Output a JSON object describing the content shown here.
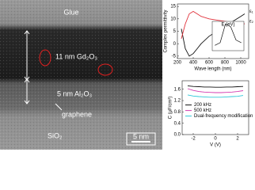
{
  "image": {
    "labels": [
      "Glue",
      "11 nm Gd₂O₃",
      "5 nm Al₂O₃",
      "graphene",
      "SiO₂"
    ],
    "scale_bar": "5 nm"
  },
  "chart_data": [
    {
      "type": "line",
      "xlabel": "Wave length (nm)",
      "ylabel": "Complex permittivity",
      "x": [
        250,
        300,
        350,
        400,
        450,
        500,
        600,
        700,
        800,
        900,
        1000,
        1050
      ],
      "xlim": [
        200,
        1100
      ],
      "xticks": [
        200,
        400,
        600,
        800,
        1000
      ],
      "ylim": [
        -6,
        16
      ],
      "yticks": [
        -5,
        0,
        5,
        10,
        15
      ],
      "series": [
        {
          "name": "ε₁",
          "color": "#111111",
          "values": [
            6,
            -2,
            -5,
            -4,
            -2,
            0,
            3,
            5,
            7,
            9,
            11,
            12
          ]
        },
        {
          "name": "ε₂",
          "color": "#e0303a",
          "values": [
            2,
            8,
            12,
            13,
            12,
            11,
            10,
            9.5,
            9,
            8.5,
            8,
            8
          ]
        }
      ],
      "inset": {
        "xlabel": "E (eV)",
        "x": [
          1,
          2,
          3,
          4,
          5,
          6
        ],
        "xlim": [
          0.5,
          6.5
        ],
        "ylim": [
          0,
          1.1
        ],
        "values": [
          0.2,
          0.3,
          1,
          0.9,
          0.4,
          0.3
        ],
        "color": "#111111"
      }
    },
    {
      "type": "line",
      "xlabel": "V (V)",
      "ylabel": "C (μF/cm²)",
      "x": [
        -2.5,
        -2,
        -1.5,
        -1,
        -0.5,
        0,
        0.5,
        1,
        1.5,
        2,
        2.5
      ],
      "xlim": [
        -3,
        3
      ],
      "xticks": [
        -2,
        0,
        2
      ],
      "ylim": [
        0,
        1.9
      ],
      "yticks": [
        {
          "value": 0,
          "label": "0.0"
        },
        {
          "value": 0.4,
          "label": "0.4"
        },
        {
          "value": 0.8,
          "label": "0.8"
        },
        {
          "value": 1.2,
          "label": "1.2"
        },
        {
          "value": 1.6,
          "label": "1.6"
        }
      ],
      "legend": "center left",
      "series": [
        {
          "name": "200 kHz",
          "color": "#111111",
          "values": [
            1.72,
            1.7,
            1.69,
            1.68,
            1.68,
            1.67,
            1.67,
            1.68,
            1.68,
            1.69,
            1.7
          ]
        },
        {
          "name": "500 kHz",
          "color": "#d43bb0",
          "values": [
            1.62,
            1.56,
            1.52,
            1.5,
            1.49,
            1.48,
            1.48,
            1.49,
            1.5,
            1.52,
            1.55
          ]
        },
        {
          "name": "Dual-frequency modification",
          "color": "#2ec8d8",
          "values": [
            1.4,
            1.36,
            1.34,
            1.33,
            1.32,
            1.32,
            1.32,
            1.33,
            1.34,
            1.35,
            1.38
          ]
        }
      ]
    }
  ]
}
